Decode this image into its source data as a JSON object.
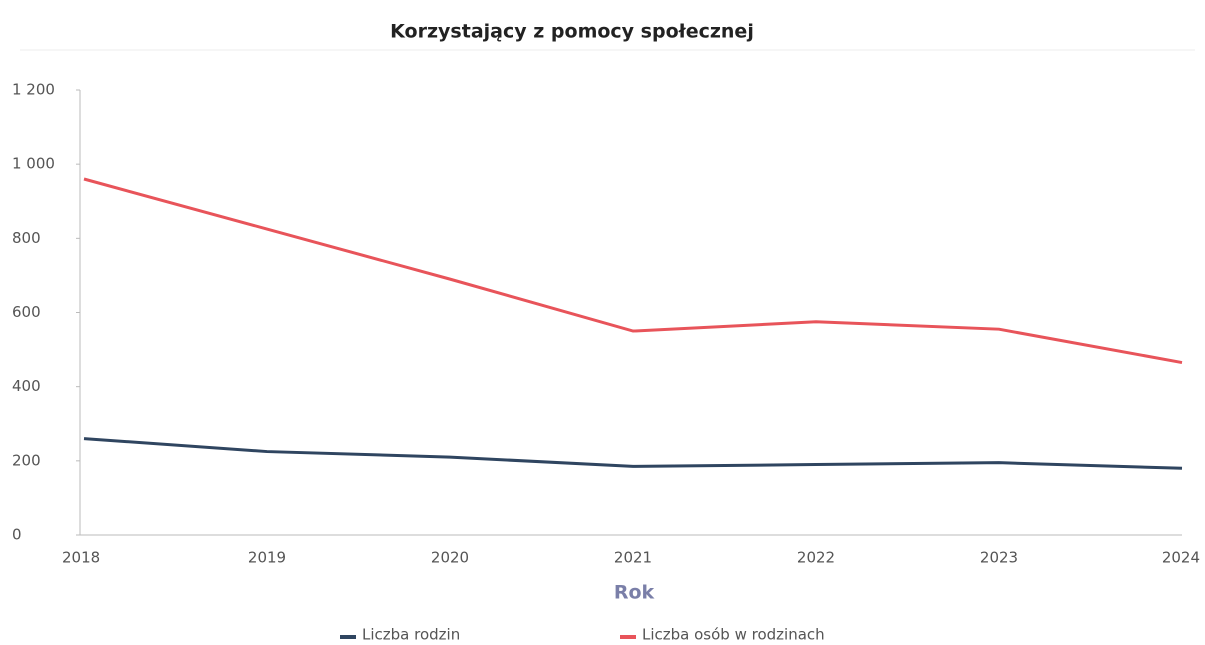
{
  "chart_data": {
    "type": "line",
    "title": "Korzystający z pomocy społecznej",
    "x_label": "Rok",
    "categories": [
      "2018",
      "2019",
      "2020",
      "2021",
      "2022",
      "2023",
      "2024"
    ],
    "series": [
      {
        "name": "Liczba rodzin",
        "color": "#2f4560",
        "values": [
          260,
          225,
          210,
          185,
          190,
          195,
          180
        ]
      },
      {
        "name": "Liczba osób w rodzinach",
        "color": "#e8545a",
        "values": [
          960,
          825,
          690,
          550,
          575,
          555,
          465
        ]
      }
    ],
    "ylim": [
      0,
      1200
    ],
    "yticks": [
      0,
      200,
      400,
      600,
      800,
      {
        "value": 1000,
        "label": "1 000"
      },
      {
        "value": 1200,
        "label": "1 200"
      }
    ],
    "grid": false,
    "legend": "bottom"
  }
}
